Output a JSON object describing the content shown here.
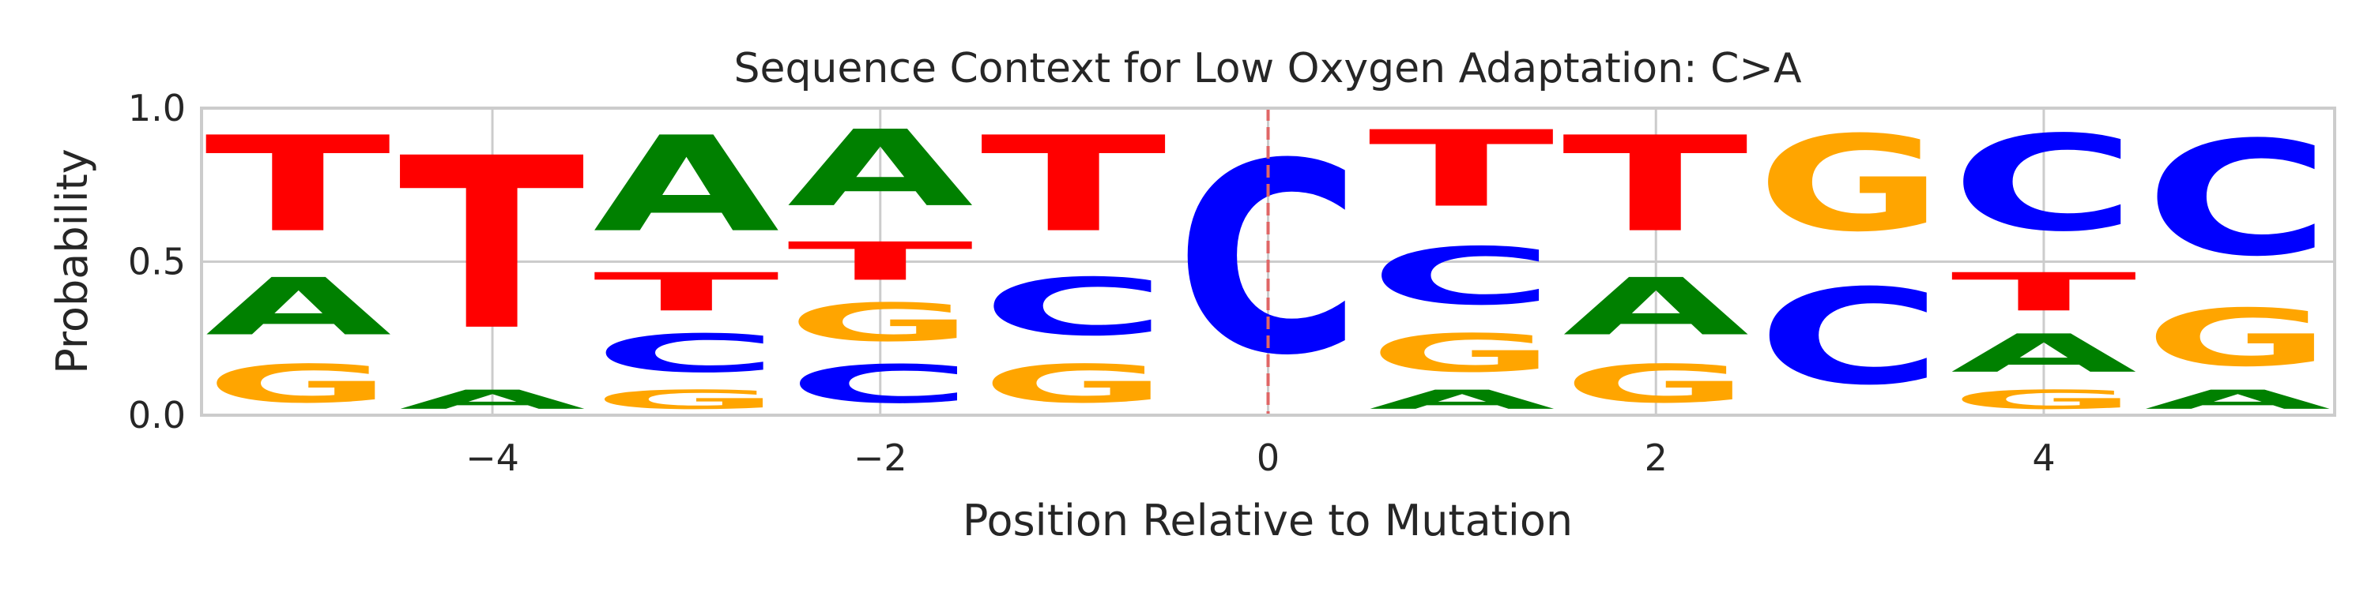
{
  "chart_data": {
    "type": "sequence-logo",
    "title": "Sequence Context for Low Oxygen Adaptation: C>A",
    "xlabel": "Position Relative to Mutation",
    "ylabel": "Probability",
    "xlim": [
      -5.5,
      5.5
    ],
    "ylim": [
      0,
      1
    ],
    "x_ticks": [
      -4,
      -2,
      0,
      2,
      4
    ],
    "x_tick_labels": [
      "−4",
      "−2",
      "0",
      "2",
      "4"
    ],
    "y_ticks": [
      0,
      0.5,
      1
    ],
    "y_tick_labels": [
      "0.0",
      "0.5",
      "1.0"
    ],
    "grid": true,
    "mutation_marker": {
      "position": 0,
      "color": "#e06666",
      "style": "dashed"
    },
    "base_colors": {
      "A": "#008000",
      "C": "#0000ff",
      "G": "#ffa500",
      "T": "#ff0000"
    },
    "positions": [
      {
        "pos": -5,
        "stack": [
          {
            "base": "G",
            "p": 0.2
          },
          {
            "base": "A",
            "p": 0.3
          },
          {
            "base": "T",
            "p": 0.5
          }
        ]
      },
      {
        "pos": -4,
        "stack": [
          {
            "base": "A",
            "p": 0.1
          },
          {
            "base": "T",
            "p": 0.9
          }
        ]
      },
      {
        "pos": -3,
        "stack": [
          {
            "base": "G",
            "p": 0.1
          },
          {
            "base": "C",
            "p": 0.2
          },
          {
            "base": "T",
            "p": 0.2
          },
          {
            "base": "A",
            "p": 0.5
          }
        ]
      },
      {
        "pos": -2,
        "stack": [
          {
            "base": "C",
            "p": 0.2
          },
          {
            "base": "G",
            "p": 0.2
          },
          {
            "base": "T",
            "p": 0.2
          },
          {
            "base": "A",
            "p": 0.4
          }
        ]
      },
      {
        "pos": -1,
        "stack": [
          {
            "base": "G",
            "p": 0.2
          },
          {
            "base": "C",
            "p": 0.3
          },
          {
            "base": "T",
            "p": 0.5
          }
        ]
      },
      {
        "pos": 0,
        "stack": [
          {
            "base": "C",
            "p": 1.0
          }
        ]
      },
      {
        "pos": 1,
        "stack": [
          {
            "base": "A",
            "p": 0.1
          },
          {
            "base": "G",
            "p": 0.2
          },
          {
            "base": "C",
            "p": 0.3
          },
          {
            "base": "T",
            "p": 0.4
          }
        ]
      },
      {
        "pos": 2,
        "stack": [
          {
            "base": "G",
            "p": 0.2
          },
          {
            "base": "A",
            "p": 0.3
          },
          {
            "base": "T",
            "p": 0.5
          }
        ]
      },
      {
        "pos": 3,
        "stack": [
          {
            "base": "C",
            "p": 0.5
          },
          {
            "base": "G",
            "p": 0.5
          }
        ]
      },
      {
        "pos": 4,
        "stack": [
          {
            "base": "G",
            "p": 0.1
          },
          {
            "base": "A",
            "p": 0.2
          },
          {
            "base": "T",
            "p": 0.2
          },
          {
            "base": "C",
            "p": 0.5
          }
        ]
      },
      {
        "pos": 5,
        "stack": [
          {
            "base": "A",
            "p": 0.1
          },
          {
            "base": "G",
            "p": 0.3
          },
          {
            "base": "C",
            "p": 0.6
          }
        ]
      }
    ]
  }
}
